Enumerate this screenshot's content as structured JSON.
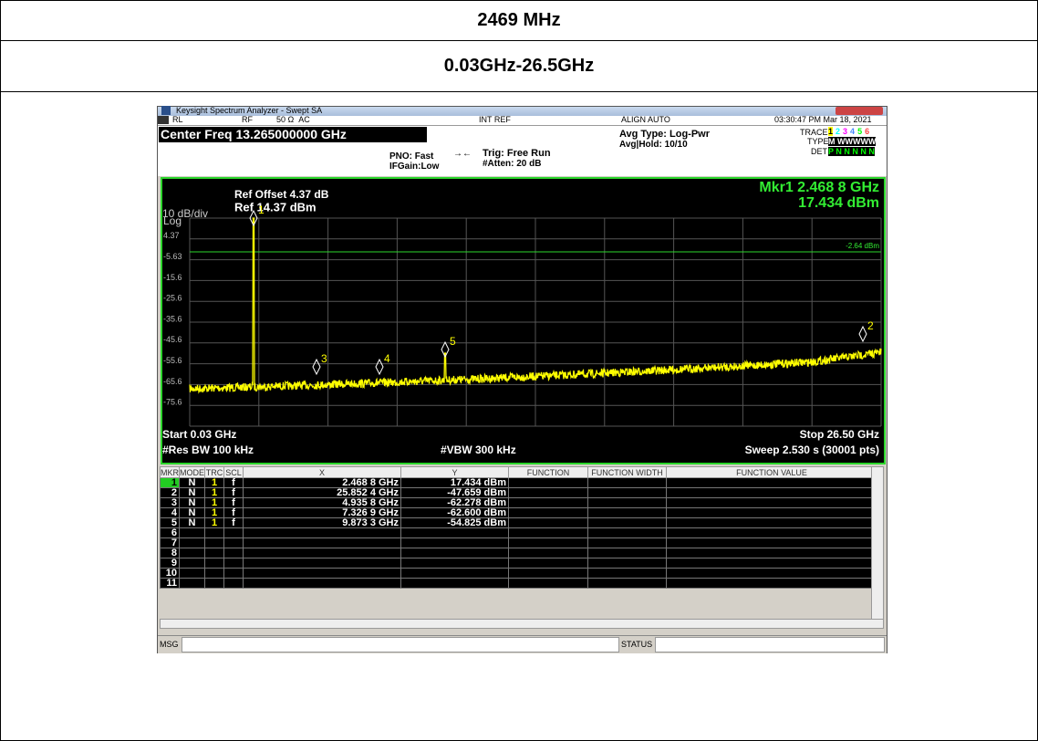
{
  "header": {
    "title": "2469 MHz",
    "range": "0.03GHz-26.5GHz"
  },
  "window": {
    "title": "Keysight Spectrum Analyzer - Swept SA",
    "status": [
      "RL",
      "RF",
      "50 Ω  AC",
      "INT REF",
      "ALIGN AUTO",
      "03:30:47 PM Mar 18, 2021"
    ]
  },
  "settings": {
    "center": "Center Freq 13.265000000 GHz",
    "pno": "PNO: Fast",
    "ifgain": "IFGain:Low",
    "trig": "Trig: Free Run",
    "atten": "#Atten: 20 dB",
    "avg_type": "Avg Type: Log-Pwr",
    "avg_hold": "Avg|Hold: 10/10",
    "trace_label": "TRACE",
    "trace_nums": [
      "1",
      "2",
      "3",
      "4",
      "5",
      "6"
    ],
    "type_label": "TYPE",
    "type_value": "M WWWWW",
    "det_label": "DET",
    "det_value": "P N N N N N"
  },
  "plot": {
    "ref_offset": "Ref Offset 4.37 dB",
    "ref": "Ref 14.37 dBm",
    "scale": "10 dB/div",
    "log": "Log",
    "y_labels": [
      "4.37",
      "-5.63",
      "-15.6",
      "-25.6",
      "-35.6",
      "-45.6",
      "-55.6",
      "-65.6",
      "-75.6"
    ],
    "marker_readout": [
      "Mkr1 2.468 8 GHz",
      "17.434 dBm"
    ],
    "line_label": "-2.64 dBm",
    "start": "Start 0.03 GHz",
    "stop": "Stop 26.50 GHz",
    "rbw": "#Res BW 100 kHz",
    "vbw": "#VBW 300 kHz",
    "sweep": "Sweep  2.530 s (30001 pts)"
  },
  "table": {
    "columns": [
      "MKR",
      "MODE",
      "TRC",
      "SCL",
      "X",
      "Y",
      "FUNCTION",
      "FUNCTION WIDTH",
      "FUNCTION VALUE"
    ],
    "rows": [
      [
        "1",
        "N",
        "1",
        "f",
        "2.468 8 GHz",
        "17.434 dBm"
      ],
      [
        "2",
        "N",
        "1",
        "f",
        "25.852 4 GHz",
        "-47.659 dBm"
      ],
      [
        "3",
        "N",
        "1",
        "f",
        "4.935 8 GHz",
        "-62.278 dBm"
      ],
      [
        "4",
        "N",
        "1",
        "f",
        "7.326 9 GHz",
        "-62.600 dBm"
      ],
      [
        "5",
        "N",
        "1",
        "f",
        "9.873 3 GHz",
        "-54.825 dBm"
      ]
    ],
    "empty_rows": [
      "6",
      "7",
      "8",
      "9",
      "10",
      "11"
    ]
  },
  "footer": {
    "msg": "MSG",
    "status": "STATUS"
  }
}
